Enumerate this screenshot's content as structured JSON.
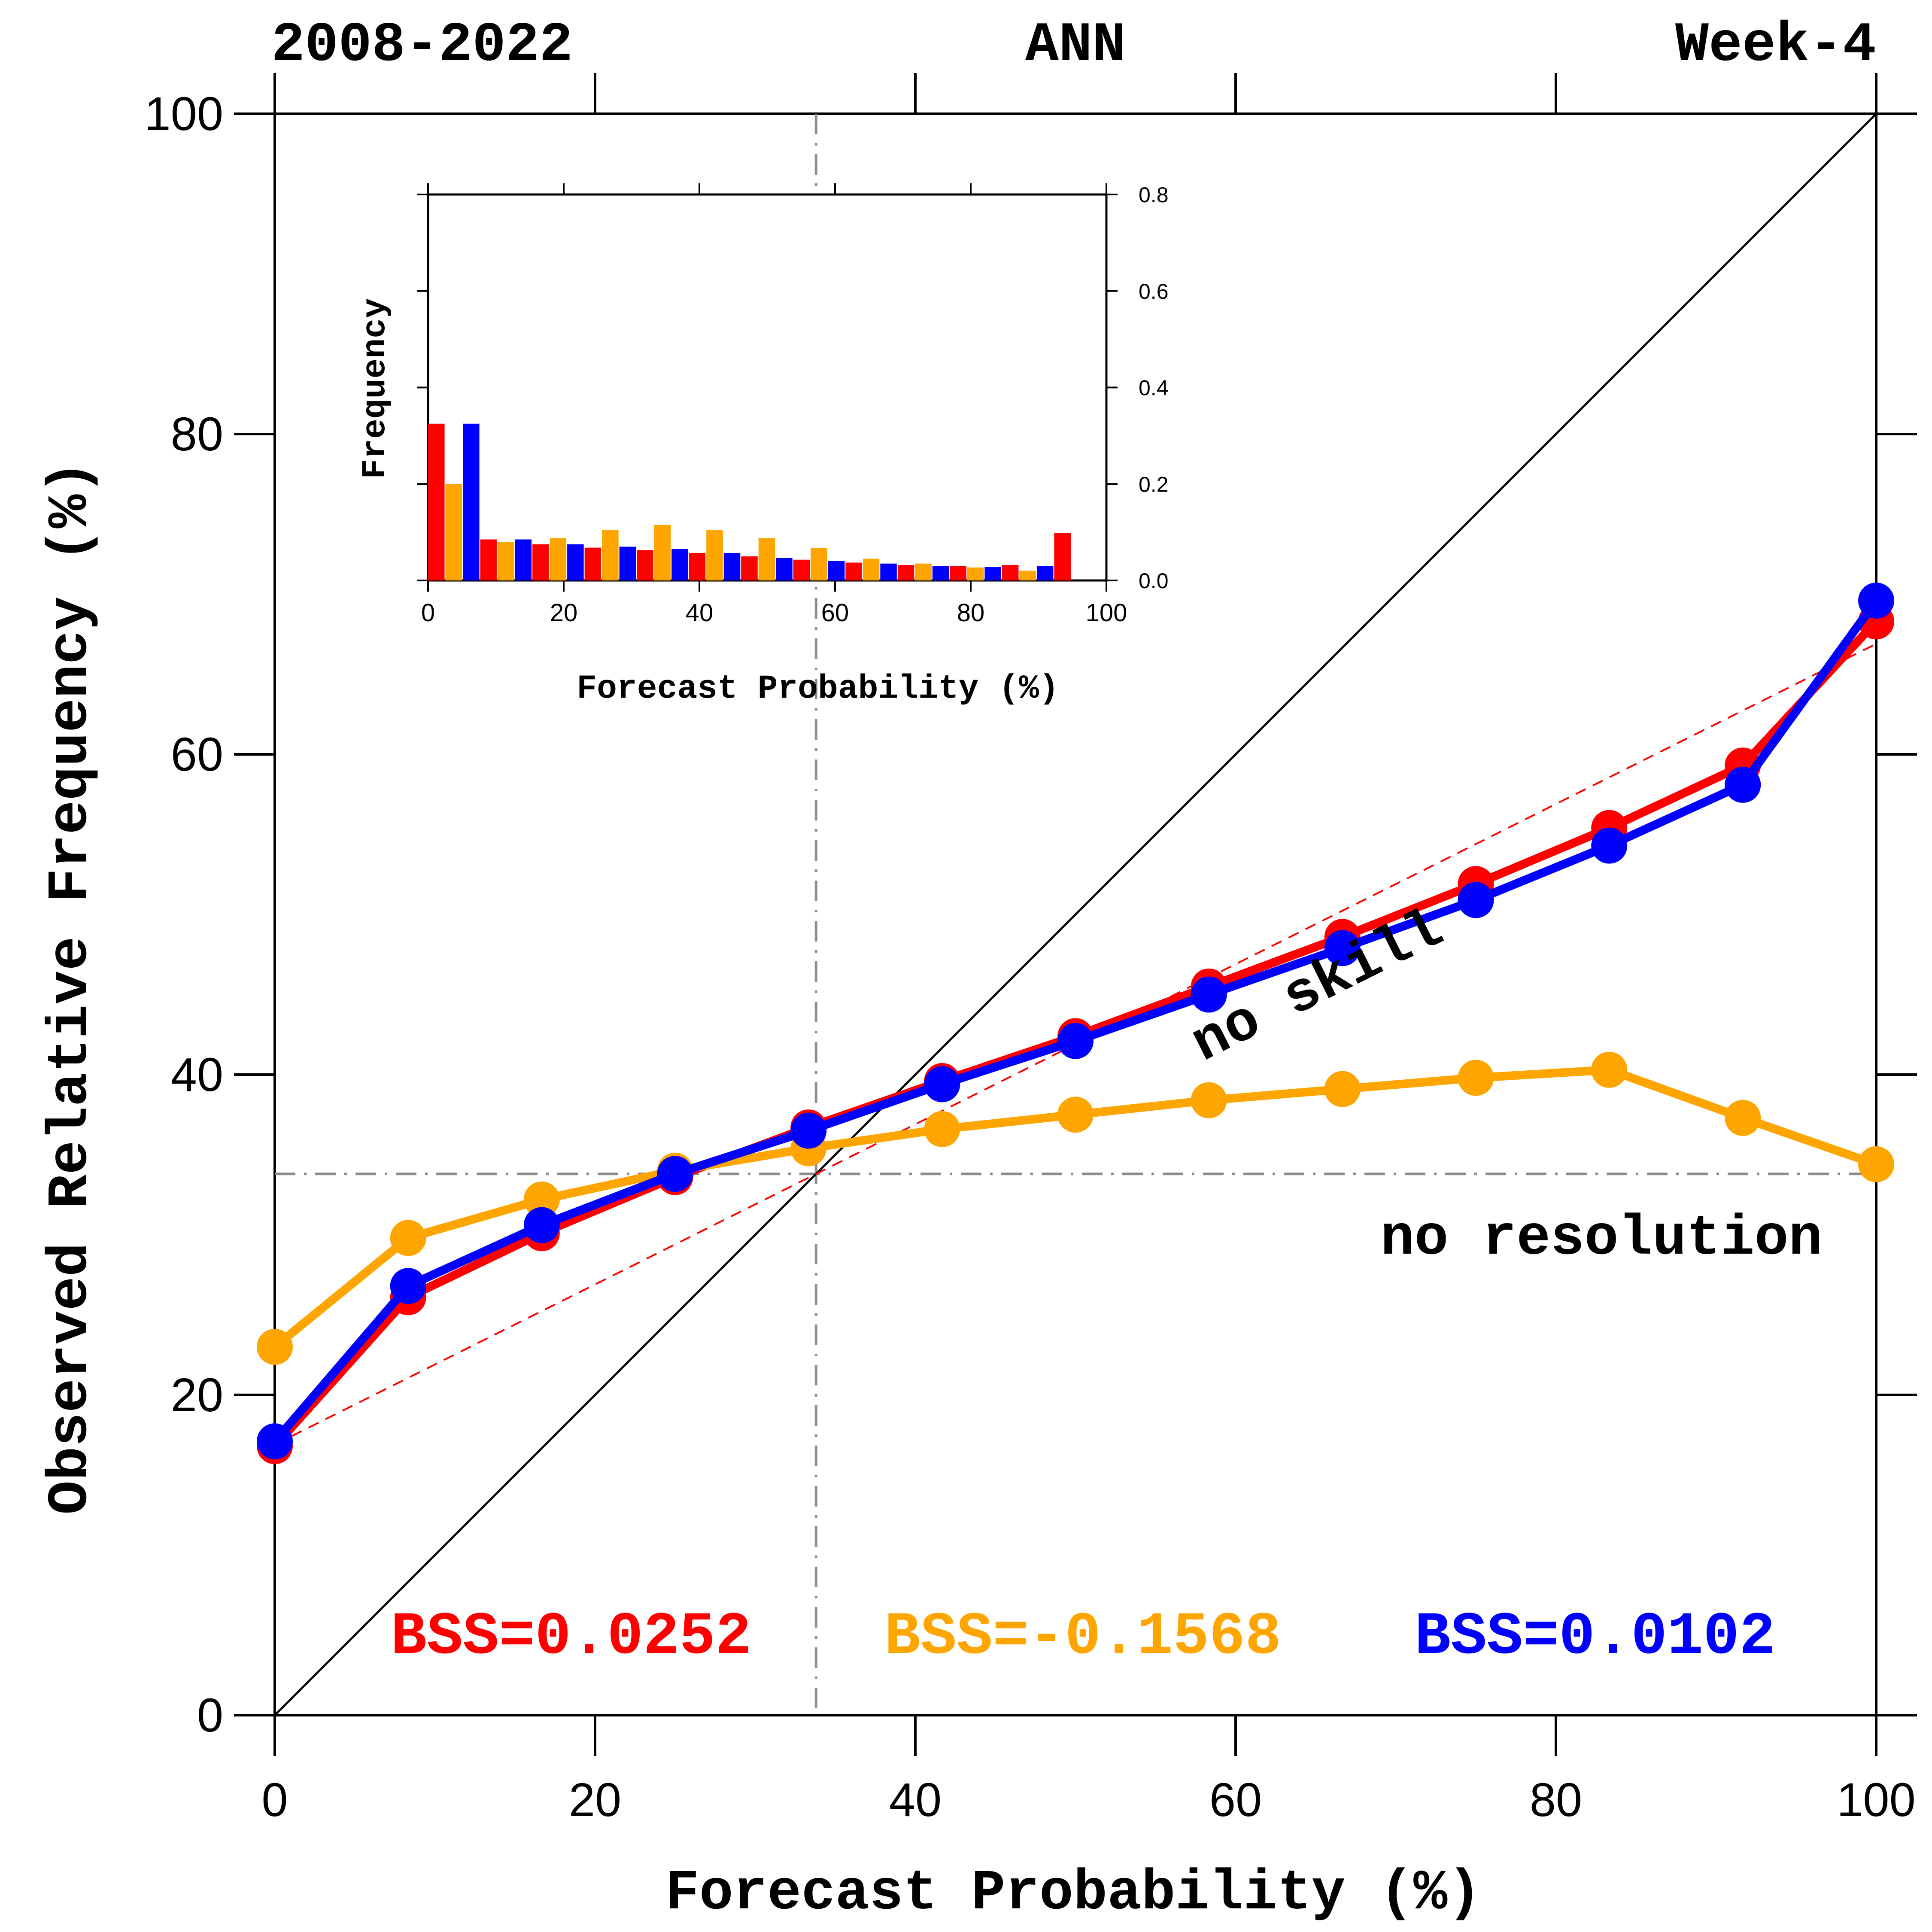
{
  "header": {
    "left": "2008-2022",
    "center": "ANN",
    "right": "Week-4"
  },
  "annotations": {
    "no_skill": "no skill",
    "no_resolution": "no resolution"
  },
  "chart_data": [
    {
      "type": "line",
      "xlabel": "Forecast Probability (%)",
      "ylabel": "Observed Relative Frequency (%)",
      "xlim": [
        0,
        100
      ],
      "ylim": [
        0,
        100
      ],
      "x_ticks": [
        "0",
        "20",
        "40",
        "60",
        "80",
        "100"
      ],
      "y_ticks": [
        "0",
        "20",
        "40",
        "60",
        "80",
        "100"
      ],
      "grid": false,
      "x": [
        0,
        8.33,
        16.67,
        25,
        33.33,
        41.67,
        50,
        58.33,
        66.67,
        75,
        83.33,
        91.67,
        100
      ],
      "series": [
        {
          "color": "#ff0000",
          "values": [
            16.8,
            26.1,
            30.1,
            33.6,
            36.7,
            39.6,
            42.4,
            45.5,
            48.6,
            51.9,
            55.4,
            59.3,
            68.3
          ]
        },
        {
          "color": "#ffa500",
          "values": [
            23.0,
            29.8,
            32.2,
            34.0,
            35.4,
            36.6,
            37.5,
            38.4,
            39.1,
            39.8,
            40.3,
            37.3,
            34.4
          ]
        },
        {
          "color": "#0000ff",
          "values": [
            17.1,
            26.8,
            30.6,
            33.8,
            36.5,
            39.4,
            42.1,
            45.0,
            47.9,
            50.9,
            54.3,
            58.1,
            69.6
          ]
        }
      ],
      "reference": {
        "climatology": 33.8,
        "no_skill_line": [
          [
            0,
            16.9
          ],
          [
            100,
            66.9
          ]
        ],
        "perfect_line": [
          [
            0,
            0
          ],
          [
            100,
            100
          ]
        ]
      },
      "scores": [
        {
          "label": "BSS=0.0252",
          "color": "#ff0000"
        },
        {
          "label": "BSS=-0.1568",
          "color": "#ffa500"
        },
        {
          "label": "BSS=0.0102",
          "color": "#0000ff"
        }
      ]
    },
    {
      "type": "bar",
      "xlabel": "Forecast Probability (%)",
      "ylabel": "Frequency",
      "xlim": [
        0,
        100
      ],
      "ylim": [
        0,
        0.8
      ],
      "x_ticks": [
        "0",
        "20",
        "40",
        "60",
        "80",
        "100"
      ],
      "y_ticks": [
        "0.0",
        "0.2",
        "0.4",
        "0.6",
        "0.8"
      ],
      "bins": [
        0,
        8.33,
        16.67,
        25,
        33.33,
        41.67,
        50,
        58.33,
        66.67,
        75,
        83.33,
        91.67,
        100
      ],
      "series": [
        {
          "color": "#ff0000",
          "values": [
            0.325,
            0.085,
            0.075,
            0.068,
            0.063,
            0.057,
            0.05,
            0.043,
            0.037,
            0.032,
            0.03,
            0.032,
            0.098
          ]
        },
        {
          "color": "#ffa500",
          "values": [
            0.2,
            0.08,
            0.088,
            0.105,
            0.115,
            0.105,
            0.088,
            0.067,
            0.045,
            0.035,
            0.027,
            0.02,
            0.0
          ]
        },
        {
          "color": "#0000ff",
          "values": [
            0.325,
            0.085,
            0.075,
            0.07,
            0.065,
            0.057,
            0.047,
            0.04,
            0.035,
            0.03,
            0.028,
            0.03,
            0.0
          ]
        }
      ]
    }
  ]
}
